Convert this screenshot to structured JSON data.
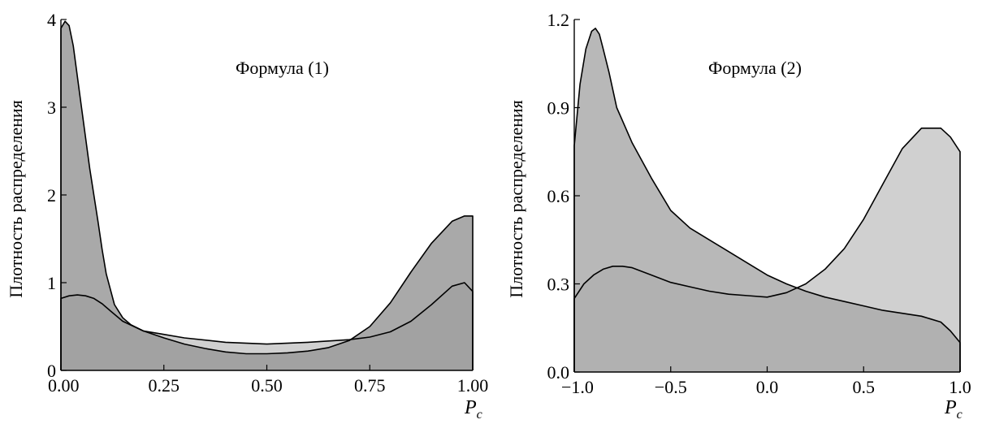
{
  "chart_data": [
    {
      "type": "area",
      "annotation": "Формула (1)",
      "ylabel": "Плотность распределения",
      "xlabel_main": "P",
      "xlabel_sub": "c",
      "xlim": [
        0,
        1
      ],
      "ylim": [
        0,
        4
      ],
      "x_ticks": [
        "0.00",
        "0.25",
        "0.50",
        "0.75",
        "1.00"
      ],
      "x_tick_values": [
        0,
        0.25,
        0.5,
        0.75,
        1.0
      ],
      "y_ticks": [
        "0",
        "1",
        "2",
        "3",
        "4"
      ],
      "y_tick_values": [
        0,
        1,
        2,
        3,
        4
      ],
      "series": [
        {
          "fill": "#d0d0d0",
          "x": [
            0,
            0.02,
            0.04,
            0.06,
            0.08,
            0.1,
            0.12,
            0.15,
            0.2,
            0.25,
            0.3,
            0.4,
            0.5,
            0.6,
            0.7,
            0.75,
            0.8,
            0.85,
            0.9,
            0.95,
            0.98,
            1.0
          ],
          "y": [
            0.82,
            0.85,
            0.86,
            0.85,
            0.82,
            0.76,
            0.68,
            0.56,
            0.45,
            0.41,
            0.37,
            0.32,
            0.3,
            0.32,
            0.35,
            0.38,
            0.44,
            0.56,
            0.75,
            0.96,
            1.0,
            0.9
          ]
        },
        {
          "fill": "#9a9a9a",
          "x": [
            0,
            0.01,
            0.02,
            0.03,
            0.05,
            0.07,
            0.09,
            0.1,
            0.11,
            0.13,
            0.15,
            0.17,
            0.2,
            0.25,
            0.3,
            0.35,
            0.4,
            0.45,
            0.5,
            0.55,
            0.6,
            0.65,
            0.7,
            0.75,
            0.8,
            0.85,
            0.9,
            0.95,
            0.98,
            1.0
          ],
          "y": [
            3.9,
            3.98,
            3.93,
            3.7,
            3.0,
            2.3,
            1.7,
            1.38,
            1.1,
            0.75,
            0.6,
            0.52,
            0.45,
            0.37,
            0.3,
            0.25,
            0.21,
            0.19,
            0.19,
            0.2,
            0.22,
            0.26,
            0.34,
            0.5,
            0.77,
            1.12,
            1.45,
            1.7,
            1.76,
            1.76
          ]
        }
      ]
    },
    {
      "type": "area",
      "annotation": "Формула (2)",
      "ylabel": "Плотность распределения",
      "xlabel_main": "P",
      "xlabel_sub": "c",
      "xlim": [
        -1,
        1
      ],
      "ylim": [
        0,
        1.2
      ],
      "x_ticks": [
        "−1.0",
        "−0.5",
        "0.0",
        "0.5",
        "1.0"
      ],
      "x_tick_values": [
        -1,
        -0.5,
        0,
        0.5,
        1.0
      ],
      "y_ticks": [
        "0.0",
        "0.3",
        "0.6",
        "0.9",
        "1.2"
      ],
      "y_tick_values": [
        0,
        0.3,
        0.6,
        0.9,
        1.2
      ],
      "series": [
        {
          "fill": "#d0d0d0",
          "x": [
            -1.0,
            -0.95,
            -0.9,
            -0.85,
            -0.8,
            -0.75,
            -0.7,
            -0.6,
            -0.5,
            -0.4,
            -0.3,
            -0.2,
            -0.1,
            0.0,
            0.1,
            0.2,
            0.3,
            0.4,
            0.5,
            0.6,
            0.7,
            0.8,
            0.9,
            0.95,
            1.0
          ],
          "y": [
            0.25,
            0.3,
            0.33,
            0.35,
            0.36,
            0.36,
            0.355,
            0.33,
            0.305,
            0.29,
            0.275,
            0.265,
            0.26,
            0.255,
            0.27,
            0.3,
            0.35,
            0.42,
            0.52,
            0.64,
            0.76,
            0.83,
            0.83,
            0.8,
            0.75
          ]
        },
        {
          "fill": "#ababab",
          "x": [
            -1.0,
            -0.97,
            -0.94,
            -0.91,
            -0.89,
            -0.87,
            -0.85,
            -0.82,
            -0.78,
            -0.7,
            -0.6,
            -0.5,
            -0.4,
            -0.3,
            -0.2,
            -0.1,
            0.0,
            0.1,
            0.2,
            0.3,
            0.4,
            0.5,
            0.6,
            0.7,
            0.8,
            0.9,
            0.95,
            1.0
          ],
          "y": [
            0.77,
            0.98,
            1.1,
            1.16,
            1.17,
            1.15,
            1.1,
            1.02,
            0.9,
            0.78,
            0.66,
            0.55,
            0.49,
            0.45,
            0.41,
            0.37,
            0.33,
            0.3,
            0.275,
            0.255,
            0.24,
            0.225,
            0.21,
            0.2,
            0.19,
            0.17,
            0.14,
            0.1
          ]
        }
      ]
    }
  ]
}
